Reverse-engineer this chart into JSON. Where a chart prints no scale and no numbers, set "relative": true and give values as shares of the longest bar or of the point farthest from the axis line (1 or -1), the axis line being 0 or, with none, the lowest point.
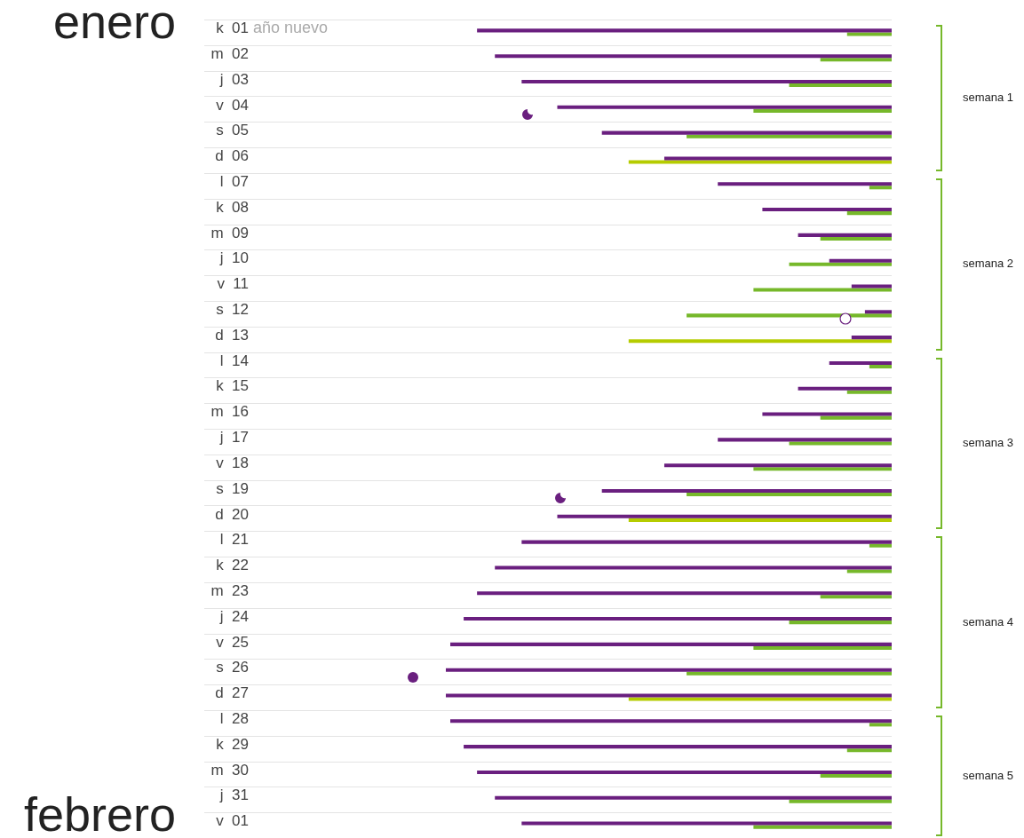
{
  "chart_data": {
    "type": "bar",
    "orientation": "horizontal",
    "relative": true,
    "grid": "y",
    "legend": false,
    "categories": [
      "k 01",
      "m 02",
      "j 03",
      "v 04",
      "s 05",
      "d 06",
      "l 07",
      "k 08",
      "m 09",
      "j 10",
      "v 11",
      "s 12",
      "d 13",
      "l 14",
      "k 15",
      "m 16",
      "j 17",
      "v 18",
      "s 19",
      "d 20",
      "l 21",
      "k 22",
      "m 23",
      "j 24",
      "v 25",
      "s 26",
      "d 27",
      "l 28",
      "k 29",
      "m 30",
      "j 31",
      "v 01"
    ],
    "series": [
      {
        "colors": [
          "#76b82a",
          "#76b82a",
          "#76b82a",
          "#76b82a",
          "#76b82a",
          "#b5cc00",
          "#76b82a",
          "#76b82a",
          "#76b82a",
          "#76b82a",
          "#76b82a",
          "#76b82a",
          "#b5cc00",
          "#76b82a",
          "#76b82a",
          "#76b82a",
          "#76b82a",
          "#76b82a",
          "#76b82a",
          "#b5cc00",
          "#76b82a",
          "#76b82a",
          "#76b82a",
          "#76b82a",
          "#76b82a",
          "#76b82a",
          "#b5cc00",
          "#76b82a",
          "#76b82a",
          "#76b82a",
          "#76b82a",
          "#76b82a"
        ],
        "values": [
          0.1,
          0.16,
          0.23,
          0.31,
          0.46,
          0.59,
          0.05,
          0.1,
          0.16,
          0.23,
          0.31,
          0.46,
          0.59,
          0.05,
          0.1,
          0.16,
          0.23,
          0.31,
          0.46,
          0.59,
          0.05,
          0.1,
          0.16,
          0.23,
          0.31,
          0.46,
          0.59,
          0.05,
          0.1,
          0.16,
          0.23,
          0.31
        ]
      },
      {
        "color": "#6a1f7f",
        "values": [
          0.93,
          0.89,
          0.83,
          0.75,
          0.65,
          0.51,
          0.39,
          0.29,
          0.21,
          0.14,
          0.09,
          0.06,
          0.09,
          0.14,
          0.21,
          0.29,
          0.39,
          0.51,
          0.65,
          0.75,
          0.83,
          0.89,
          0.93,
          0.96,
          0.99,
          1,
          1,
          0.99,
          0.96,
          0.93,
          0.89,
          0.83
        ]
      }
    ],
    "annotations": [
      "enero",
      "año nuevo",
      "febrero",
      "semana 1",
      "semana 2",
      "semana 3",
      "semana 4",
      "semana 5"
    ]
  }
}
